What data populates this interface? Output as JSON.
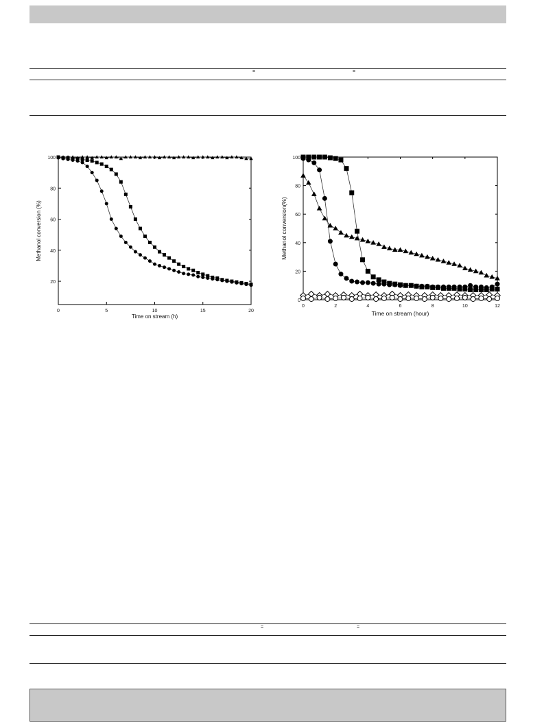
{
  "table_top": {
    "marks": [
      "=",
      "="
    ]
  },
  "table_bottom": {
    "marks": [
      "=",
      "="
    ]
  },
  "chart_data": [
    {
      "type": "line",
      "xlabel": "Time on stream (h)",
      "ylabel": "Methanol conversion (%)",
      "xlim": [
        0,
        20
      ],
      "ylim": [
        5,
        100
      ],
      "xticks": [
        0,
        5,
        10,
        15,
        20
      ],
      "yticks": [
        20,
        40,
        60,
        80,
        100
      ],
      "grid": false,
      "series": [
        {
          "marker": "triangle",
          "x": [
            0,
            0.5,
            1,
            1.5,
            2,
            2.5,
            3,
            3.5,
            4,
            4.5,
            5,
            5.5,
            6,
            6.5,
            7,
            7.5,
            8,
            8.5,
            9,
            9.5,
            10,
            10.5,
            11,
            11.5,
            12,
            12.5,
            13,
            13.5,
            14,
            14.5,
            15,
            15.5,
            16,
            16.5,
            17,
            17.5,
            18,
            18.5,
            19,
            19.5,
            20
          ],
          "y": [
            100,
            100,
            100,
            100,
            99.5,
            100,
            100,
            99.5,
            100,
            100,
            99.5,
            100,
            100,
            99,
            100,
            100,
            100,
            99.5,
            100,
            100,
            100,
            99.5,
            100,
            100,
            99.5,
            100,
            100,
            100,
            99.5,
            100,
            100,
            100,
            99.5,
            100,
            100,
            99.5,
            100,
            100,
            99.5,
            99,
            99
          ]
        },
        {
          "marker": "square",
          "x": [
            0,
            0.5,
            1,
            1.5,
            2,
            2.5,
            3,
            3.5,
            4,
            4.5,
            5,
            5.5,
            6,
            6.5,
            7,
            7.5,
            8,
            8.5,
            9,
            9.5,
            10,
            10.5,
            11,
            11.5,
            12,
            12.5,
            13,
            13.5,
            14,
            14.5,
            15,
            15.5,
            16,
            16.5,
            17,
            17.5,
            18,
            18.5,
            19,
            19.5,
            20
          ],
          "y": [
            100,
            99.5,
            99.5,
            99,
            99,
            98.5,
            98,
            97.5,
            96.5,
            95.5,
            94,
            92,
            89,
            84,
            76,
            68,
            60,
            54,
            49,
            45,
            42,
            39,
            37,
            35,
            33,
            31,
            29.5,
            28,
            27,
            25.5,
            24.5,
            23.5,
            22.5,
            22,
            21,
            20.5,
            20,
            19.5,
            19,
            18.5,
            18
          ]
        },
        {
          "marker": "circle",
          "x": [
            0,
            0.5,
            1,
            1.5,
            2,
            2.5,
            3,
            3.5,
            4,
            4.5,
            5,
            5.5,
            6,
            6.5,
            7,
            7.5,
            8,
            8.5,
            9,
            9.5,
            10,
            10.5,
            11,
            11.5,
            12,
            12.5,
            13,
            13.5,
            14,
            14.5,
            15,
            15.5,
            16,
            16.5,
            17,
            17.5,
            18,
            18.5,
            19,
            19.5,
            20
          ],
          "y": [
            99.5,
            99,
            98.5,
            98,
            97.5,
            96.5,
            94,
            90,
            85,
            78,
            70,
            60,
            54,
            49,
            45,
            42,
            39,
            37,
            35,
            33,
            31,
            30,
            29,
            28,
            27,
            26,
            25,
            24.5,
            24,
            23,
            22.5,
            22,
            21.5,
            21,
            20.5,
            20,
            19.5,
            19,
            18.5,
            18,
            17.5
          ]
        }
      ]
    },
    {
      "type": "line",
      "xlabel": "Time on stream (hour)",
      "ylabel": "Methanol conversion(%)",
      "xlim": [
        0,
        12
      ],
      "ylim": [
        0,
        100
      ],
      "xticks": [
        0,
        2,
        4,
        6,
        8,
        10,
        12
      ],
      "yticks": [
        0,
        20,
        40,
        60,
        80,
        100
      ],
      "grid": false,
      "series": [
        {
          "marker": "square",
          "x": [
            0,
            0.33,
            0.67,
            1,
            1.33,
            1.67,
            2,
            2.33,
            2.67,
            3,
            3.33,
            3.67,
            4,
            4.33,
            4.67,
            5,
            5.33,
            5.67,
            6,
            6.33,
            6.67,
            7,
            7.33,
            7.67,
            8,
            8.33,
            8.67,
            9,
            9.33,
            9.67,
            10,
            10.33,
            10.67,
            11,
            11.33,
            11.67,
            12
          ],
          "y": [
            100,
            100,
            100,
            100,
            100,
            99.5,
            99,
            98,
            92,
            75,
            48,
            28,
            20,
            16,
            14,
            12.5,
            11.5,
            11,
            10.5,
            10,
            10,
            9.5,
            9,
            9,
            8.5,
            8.5,
            8,
            8,
            8,
            7.5,
            7.5,
            7,
            7,
            7,
            7,
            7.5,
            7.5
          ]
        },
        {
          "marker": "circle",
          "x": [
            0,
            0.33,
            0.67,
            1,
            1.33,
            1.67,
            2,
            2.33,
            2.67,
            3,
            3.33,
            3.67,
            4,
            4.33,
            4.67,
            5,
            5.33,
            5.67,
            6,
            6.33,
            6.67,
            7,
            7.33,
            7.67,
            8,
            8.33,
            8.67,
            9,
            9.33,
            9.67,
            10,
            10.33,
            10.67,
            11,
            11.33,
            11.67,
            12
          ],
          "y": [
            99,
            98,
            96,
            91,
            71,
            41,
            25,
            18,
            15,
            13,
            12.5,
            12,
            12,
            11.5,
            11,
            11,
            10.5,
            10.5,
            10,
            10,
            10,
            9.5,
            9.5,
            9.5,
            9,
            9,
            9,
            9,
            9,
            9,
            9,
            10,
            9,
            9,
            8.5,
            9,
            11
          ]
        },
        {
          "marker": "triangle",
          "x": [
            0,
            0.33,
            0.67,
            1,
            1.33,
            1.67,
            2,
            2.33,
            2.67,
            3,
            3.33,
            3.67,
            4,
            4.33,
            4.67,
            5,
            5.33,
            5.67,
            6,
            6.33,
            6.67,
            7,
            7.33,
            7.67,
            8,
            8.33,
            8.67,
            9,
            9.33,
            9.67,
            10,
            10.33,
            10.67,
            11,
            11.33,
            11.67,
            12
          ],
          "y": [
            87,
            82,
            74,
            64,
            57,
            52,
            50,
            47,
            45,
            44,
            43,
            42,
            41,
            40,
            39,
            37,
            36,
            35,
            35,
            34,
            33,
            32,
            31,
            30,
            29,
            28,
            27,
            26,
            25,
            24,
            22,
            21,
            20,
            19,
            17,
            16,
            15
          ]
        },
        {
          "marker": "diamond-open",
          "x": [
            0,
            0.5,
            1,
            1.5,
            2,
            2.5,
            3,
            3.5,
            4,
            4.5,
            5,
            5.5,
            6,
            6.5,
            7,
            7.5,
            8,
            8.5,
            9,
            9.5,
            10,
            10.5,
            11,
            11.5,
            12
          ],
          "y": [
            3,
            4,
            3,
            4,
            3,
            3.5,
            3,
            4,
            3,
            3.5,
            3,
            4,
            3,
            3.5,
            3,
            3,
            3.5,
            3,
            3,
            3.5,
            3,
            3,
            3,
            3.5,
            3
          ]
        },
        {
          "marker": "circle-open",
          "x": [
            0,
            0.5,
            1,
            1.5,
            2,
            2.5,
            3,
            3.5,
            4,
            4.5,
            5,
            5.5,
            6,
            6.5,
            7,
            7.5,
            8,
            8.5,
            9,
            9.5,
            10,
            10.5,
            11,
            11.5,
            12
          ],
          "y": [
            1,
            0.5,
            1.5,
            0.5,
            1,
            1.5,
            0.5,
            1,
            1.5,
            0.5,
            1,
            1.5,
            0.5,
            1,
            1,
            0.5,
            1.5,
            1,
            0.5,
            1,
            1.5,
            0.5,
            1,
            0.5,
            1
          ]
        }
      ]
    }
  ]
}
